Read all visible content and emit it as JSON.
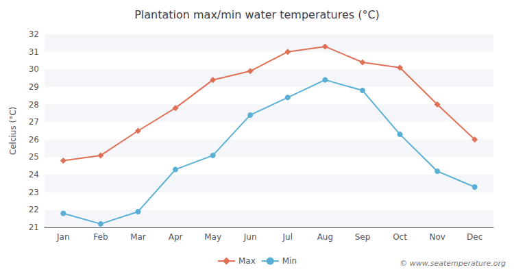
{
  "chart_data": {
    "type": "line",
    "title": "Plantation max/min water temperatures (°C)",
    "ylabel": "Celcius (°C)",
    "categories": [
      "Jan",
      "Feb",
      "Mar",
      "Apr",
      "May",
      "Jun",
      "Jul",
      "Aug",
      "Sep",
      "Oct",
      "Nov",
      "Dec"
    ],
    "series": [
      {
        "name": "Max",
        "color": "#e07055",
        "marker": "diamond",
        "values": [
          24.8,
          25.1,
          26.5,
          27.8,
          29.4,
          29.9,
          31.0,
          31.3,
          30.4,
          30.1,
          28.0,
          26.0
        ]
      },
      {
        "name": "Min",
        "color": "#5aafd4",
        "marker": "circle",
        "values": [
          21.8,
          21.2,
          21.9,
          24.3,
          25.1,
          27.4,
          28.4,
          29.4,
          28.8,
          26.3,
          24.2,
          23.3
        ]
      }
    ],
    "ylim": [
      21,
      32
    ],
    "yticks": [
      21,
      22,
      23,
      24,
      25,
      26,
      27,
      28,
      29,
      30,
      31,
      32
    ],
    "grid": false,
    "legend": "bottom",
    "annotations": [
      "© www.seatemperature.org"
    ]
  }
}
